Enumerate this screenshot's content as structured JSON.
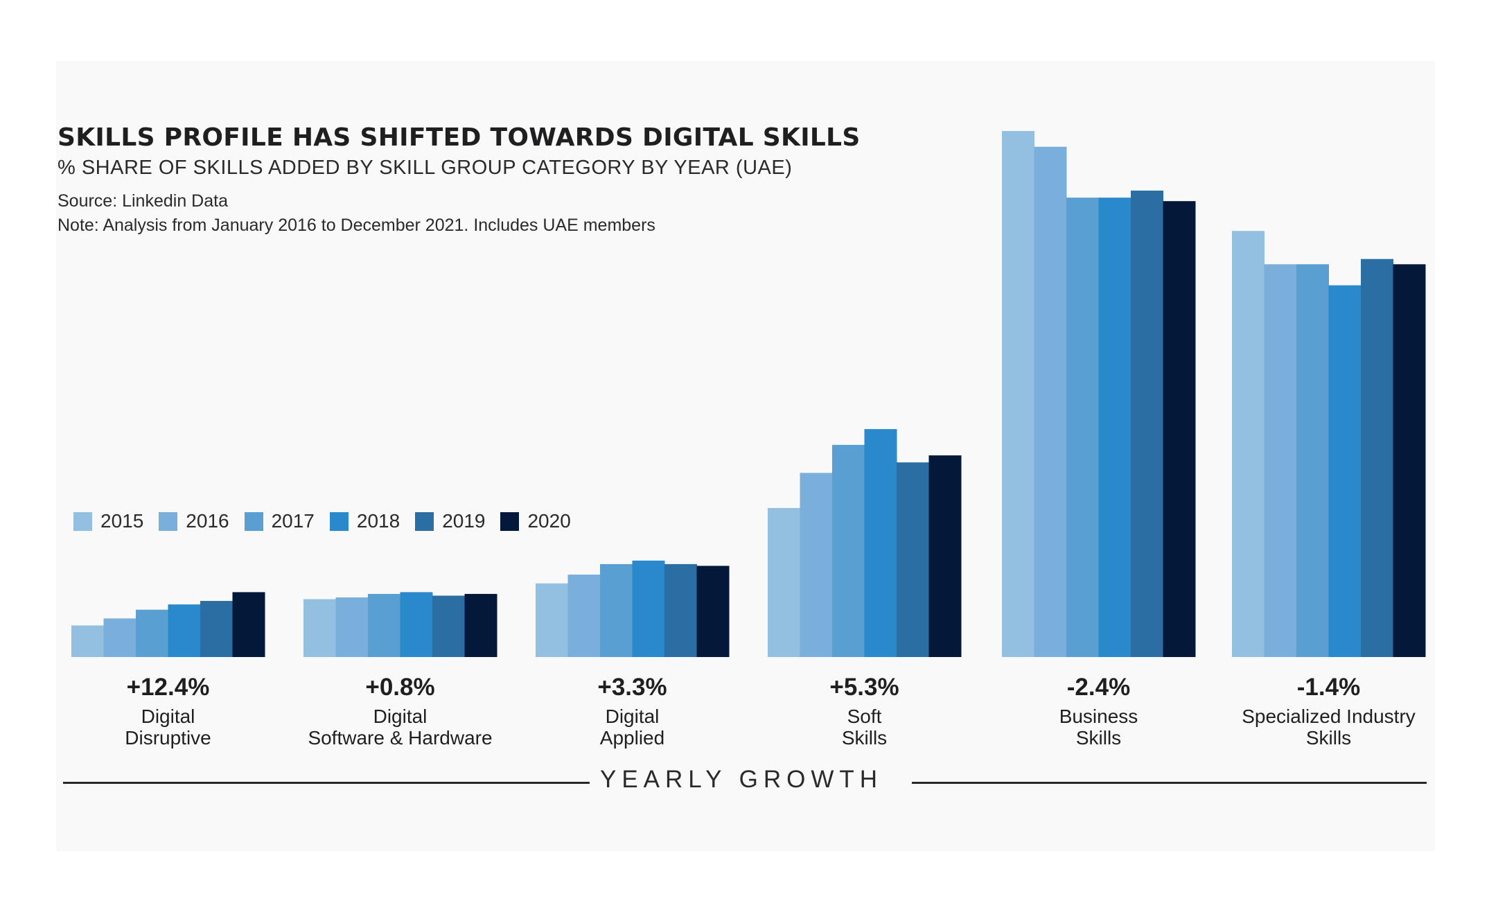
{
  "header": {
    "title": "SKILLS PROFILE HAS SHIFTED TOWARDS DIGITAL SKILLS",
    "subtitle": "% SHARE OF SKILLS ADDED BY SKILL GROUP CATEGORY BY YEAR (UAE)",
    "source": "Source: Linkedin Data",
    "note": "Note: Analysis from January 2016 to December 2021. Includes UAE members"
  },
  "colors": {
    "2015": "#93bfe0",
    "2016": "#7aaedb",
    "2017": "#5a9fd2",
    "2018": "#2a89cb",
    "2019": "#2b6ea3",
    "2020": "#04183a"
  },
  "footer": {
    "axis_title": "YEARLY GROWTH"
  },
  "chart_data": {
    "type": "bar",
    "title": "SKILLS PROFILE HAS SHIFTED TOWARDS DIGITAL SKILLS",
    "subtitle": "% SHARE OF SKILLS ADDED BY SKILL GROUP CATEGORY BY YEAR (UAE)",
    "xlabel": "YEARLY GROWTH",
    "ylabel": "",
    "ylim": [
      0,
      30
    ],
    "axis_shown": false,
    "grid": false,
    "legend_position": "left, above the first bar groups",
    "categories": [
      [
        "Digital",
        "Disruptive"
      ],
      [
        "Digital",
        "Software & Hardware"
      ],
      [
        "Digital",
        "Applied"
      ],
      [
        "Soft",
        "Skills"
      ],
      [
        "Business",
        "Skills"
      ],
      [
        "Specialized Industry",
        "Skills"
      ]
    ],
    "growth_labels": [
      "+12.4%",
      "+0.8%",
      "+3.3%",
      "+5.3%",
      "-2.4%",
      "-1.4%"
    ],
    "series": [
      {
        "name": "2015",
        "values": [
          1.8,
          3.3,
          4.2,
          8.5,
          30.0,
          24.3
        ]
      },
      {
        "name": "2016",
        "values": [
          2.2,
          3.4,
          4.7,
          10.5,
          29.1,
          22.4
        ]
      },
      {
        "name": "2017",
        "values": [
          2.7,
          3.6,
          5.3,
          12.1,
          26.2,
          22.4
        ]
      },
      {
        "name": "2018",
        "values": [
          3.0,
          3.7,
          5.5,
          13.0,
          26.2,
          21.2
        ]
      },
      {
        "name": "2019",
        "values": [
          3.2,
          3.5,
          5.3,
          11.1,
          26.6,
          22.7
        ]
      },
      {
        "name": "2020",
        "values": [
          3.7,
          3.6,
          5.2,
          11.5,
          26.0,
          22.4
        ]
      }
    ]
  }
}
